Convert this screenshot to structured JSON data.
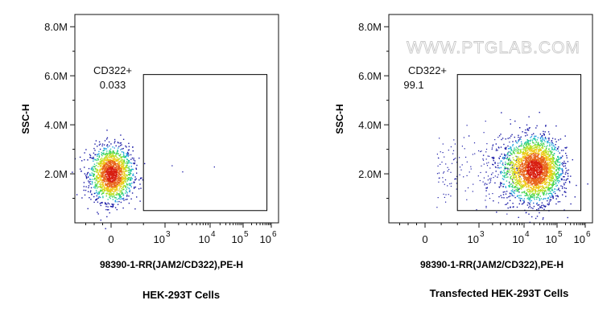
{
  "watermark": "WWW.PTGLAB.COM",
  "colors": {
    "axis": "#111111",
    "gate": "#000000",
    "density": [
      "#1a1aa6",
      "#1e5bd8",
      "#1fa0e0",
      "#22c9a0",
      "#43d44a",
      "#b8e020",
      "#f0c818",
      "#e8641a",
      "#d81e10"
    ]
  },
  "chart_data": [
    {
      "type": "scatter",
      "subtype": "flow-cytometry-density-plot",
      "caption": "HEK-293T Cells",
      "xlabel": "98390-1-RR(JAM2/CD322),PE-H",
      "ylabel": "SSC-H",
      "x_scale": "biexponential",
      "y_scale": "linear",
      "x_ticks": [
        {
          "base": "0",
          "exp": ""
        },
        {
          "base": "10",
          "exp": "3"
        },
        {
          "base": "10",
          "exp": "4"
        },
        {
          "base": "10",
          "exp": "5"
        },
        {
          "base": "10",
          "exp": "6"
        }
      ],
      "y_ticks": [
        "2.0M",
        "4.0M",
        "6.0M",
        "8.0M"
      ],
      "y_tick_values": [
        2000000,
        4000000,
        6000000,
        8000000
      ],
      "ylim": [
        0,
        8500000
      ],
      "gate": {
        "name": "CD322+",
        "value": "0.033",
        "x_range": [
          600,
          700000
        ],
        "y_range": [
          500000,
          6050000
        ]
      },
      "populations": [
        {
          "center_pe": 0,
          "center_ssc": 2000000,
          "spread_pe": 250,
          "spread_ssc": 550000,
          "events": 1700
        }
      ],
      "stray_events": [
        [
          1400,
          2350000
        ],
        [
          2400,
          2100000
        ],
        [
          13000,
          2300000
        ]
      ]
    },
    {
      "type": "scatter",
      "subtype": "flow-cytometry-density-plot",
      "caption": "Transfected HEK-293T Cells",
      "xlabel": "98390-1-RR(JAM2/CD322),PE-H",
      "ylabel": "SSC-H",
      "x_scale": "biexponential",
      "y_scale": "linear",
      "x_ticks": [
        {
          "base": "0",
          "exp": ""
        },
        {
          "base": "10",
          "exp": "3"
        },
        {
          "base": "10",
          "exp": "4"
        },
        {
          "base": "10",
          "exp": "5"
        },
        {
          "base": "10",
          "exp": "6"
        }
      ],
      "y_ticks": [
        "2.0M",
        "4.0M",
        "6.0M",
        "8.0M"
      ],
      "y_tick_values": [
        2000000,
        4000000,
        6000000,
        8000000
      ],
      "ylim": [
        0,
        8500000
      ],
      "gate": {
        "name": "CD322+",
        "value": "99.1",
        "x_range": [
          600,
          700000
        ],
        "y_range": [
          500000,
          6050000
        ]
      },
      "populations": [
        {
          "center_pe": 20000,
          "center_ssc": 2200000,
          "spread_log": 0.55,
          "spread_ssc": 650000,
          "events": 2600
        }
      ],
      "stray_events": []
    }
  ]
}
